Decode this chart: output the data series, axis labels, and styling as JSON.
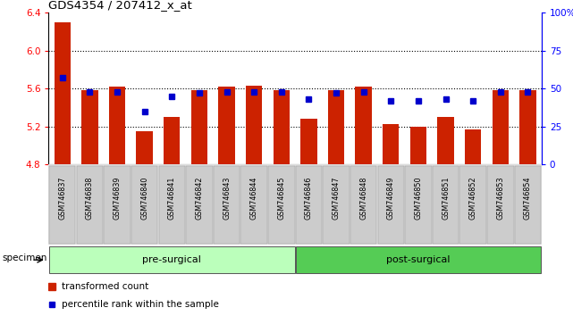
{
  "title": "GDS4354 / 207412_x_at",
  "samples": [
    "GSM746837",
    "GSM746838",
    "GSM746839",
    "GSM746840",
    "GSM746841",
    "GSM746842",
    "GSM746843",
    "GSM746844",
    "GSM746845",
    "GSM746846",
    "GSM746847",
    "GSM746848",
    "GSM746849",
    "GSM746850",
    "GSM746851",
    "GSM746852",
    "GSM746853",
    "GSM746854"
  ],
  "bar_values": [
    6.3,
    5.58,
    5.62,
    5.15,
    5.3,
    5.58,
    5.62,
    5.63,
    5.58,
    5.28,
    5.58,
    5.62,
    5.22,
    5.2,
    5.3,
    5.17,
    5.58,
    5.58
  ],
  "percentile_values": [
    57,
    48,
    48,
    35,
    45,
    47,
    48,
    48,
    48,
    43,
    47,
    48,
    42,
    42,
    43,
    42,
    48,
    48
  ],
  "ylim_left": [
    4.8,
    6.4
  ],
  "ylim_right": [
    0,
    100
  ],
  "yticks_left": [
    4.8,
    5.2,
    5.6,
    6.0,
    6.4
  ],
  "yticks_right": [
    0,
    25,
    50,
    75,
    100
  ],
  "ytick_labels_right": [
    "0",
    "25",
    "50",
    "75",
    "100%"
  ],
  "bar_color": "#cc2200",
  "marker_color": "#0000cc",
  "group1_label": "pre-surgical",
  "group2_label": "post-surgical",
  "group1_color": "#bbffbb",
  "group2_color": "#55cc55",
  "specimen_label": "specimen",
  "legend_bar_label": "transformed count",
  "legend_marker_label": "percentile rank within the sample",
  "background_color": "#ffffff",
  "plot_bg_color": "#ffffff",
  "xtick_bg_color": "#dddddd",
  "n_pre": 9,
  "n_post": 9
}
